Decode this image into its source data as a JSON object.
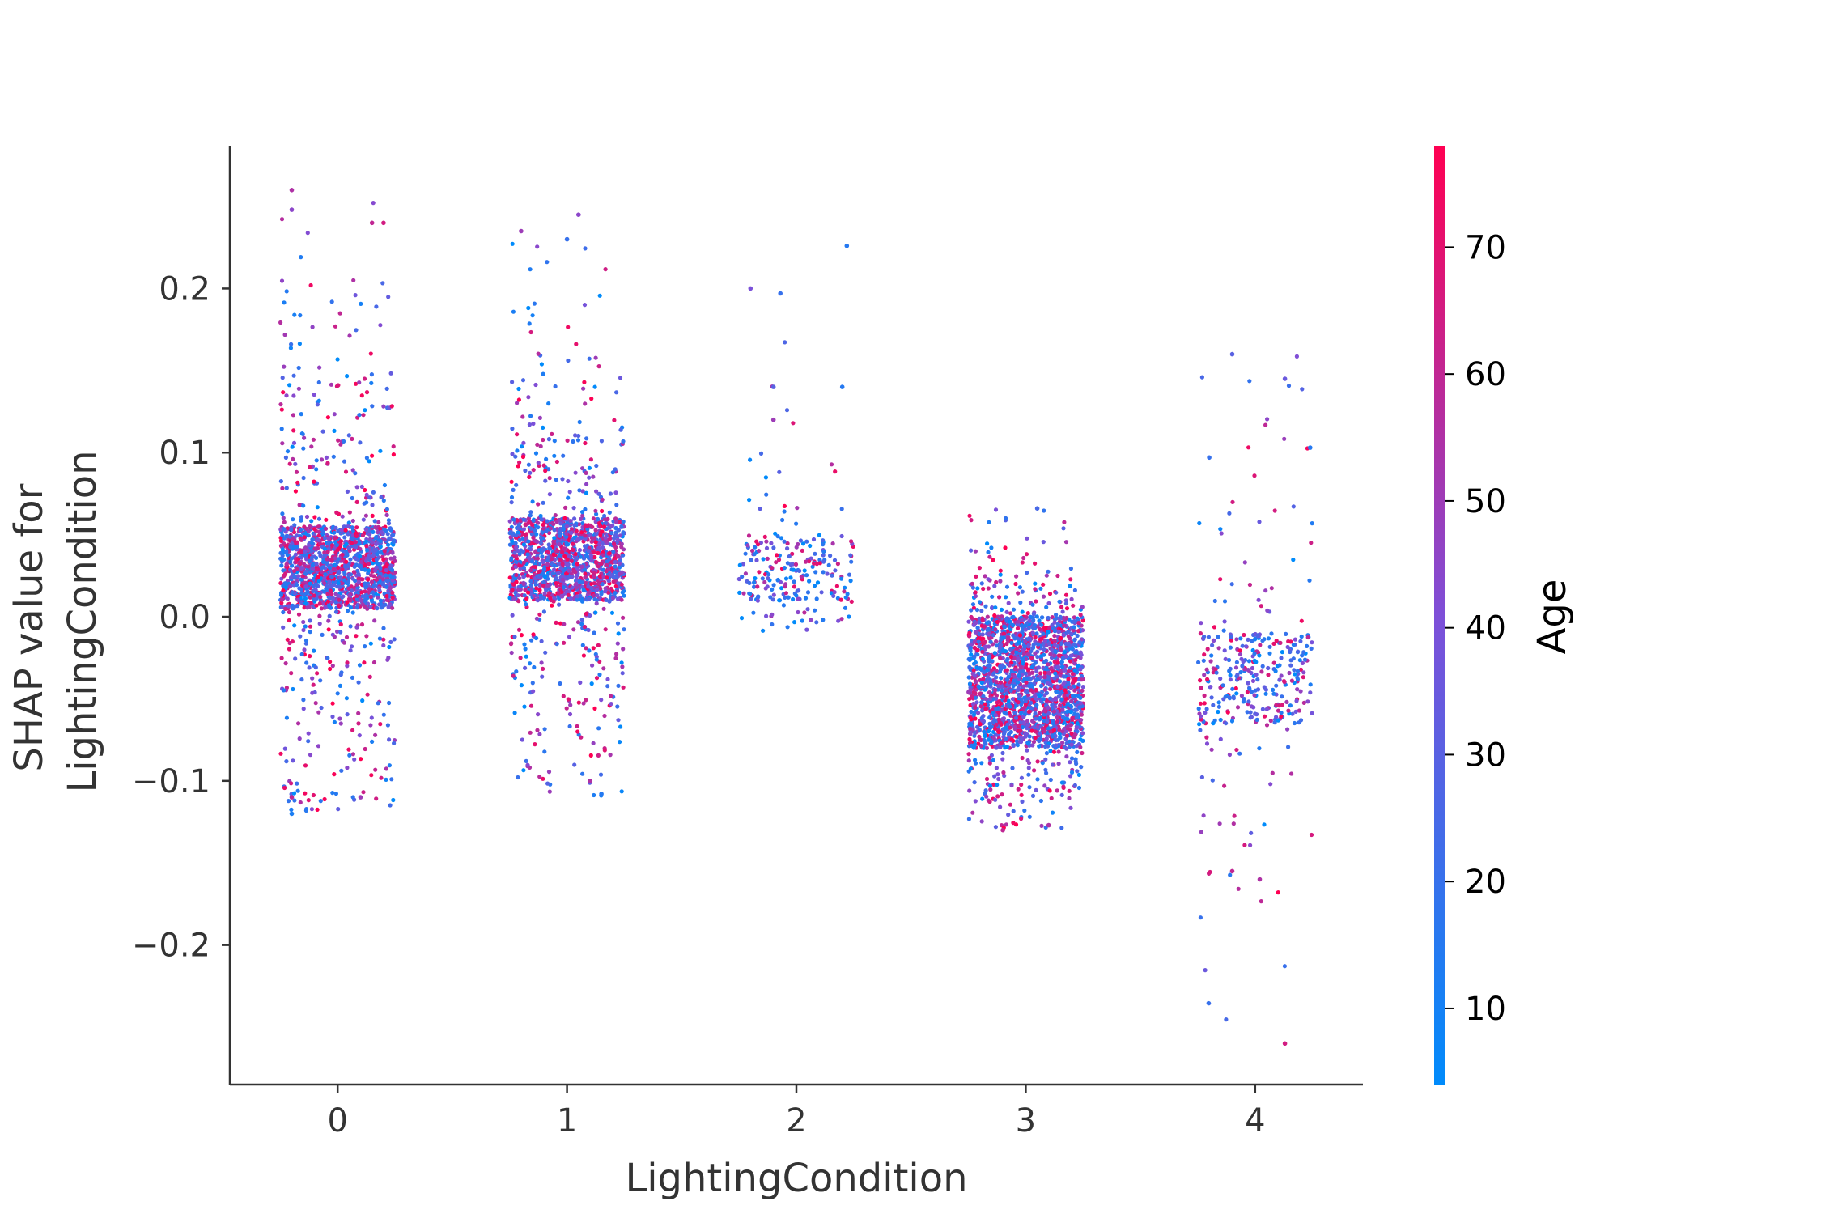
{
  "chart_data": {
    "type": "scatter",
    "title": "",
    "xlabel": "LightingCondition",
    "ylabel_lines": [
      "SHAP value for",
      "LightingCondition"
    ],
    "x_ticks": [
      "0",
      "1",
      "2",
      "3",
      "4"
    ],
    "y_ticks": [
      "−0.2",
      "−0.1",
      "0.0",
      "0.1",
      "0.2"
    ],
    "y_tick_values": [
      -0.2,
      -0.1,
      0.0,
      0.1,
      0.2
    ],
    "xlim": [
      -0.47,
      4.47
    ],
    "ylim": [
      -0.285,
      0.287
    ],
    "jitter_halfwidth": 0.25,
    "grid": false,
    "legend": "none",
    "colorbar": {
      "label": "Age",
      "range": [
        4,
        78
      ],
      "ticks": [
        "10",
        "20",
        "30",
        "40",
        "50",
        "60",
        "70"
      ],
      "tick_values": [
        10,
        20,
        30,
        40,
        50,
        60,
        70
      ],
      "color_low": "#008bfb",
      "color_mid": "#7e4fd8",
      "color_high": "#ff0052"
    },
    "groups": [
      {
        "x": 0,
        "count": 1700,
        "core": [
          0.005,
          0.055
        ],
        "spread": [
          -0.12,
          0.26
        ],
        "age_mean": 40,
        "notable": [
          [
            -0.2,
            0.26,
            55
          ],
          [
            -0.2,
            0.248,
            45
          ],
          [
            0.15,
            0.24,
            60
          ],
          [
            0.2,
            0.24,
            65
          ],
          [
            -0.2,
            -0.11,
            60
          ],
          [
            -0.2,
            -0.12,
            12
          ],
          [
            0.1,
            -0.11,
            50
          ]
        ]
      },
      {
        "x": 1,
        "count": 1500,
        "core": [
          0.01,
          0.06
        ],
        "spread": [
          -0.11,
          0.245
        ],
        "age_mean": 42,
        "notable": [
          [
            0.05,
            0.245,
            45
          ],
          [
            -0.2,
            0.235,
            50
          ],
          [
            0.0,
            0.23,
            20
          ],
          [
            0.15,
            -0.108,
            15
          ],
          [
            0.1,
            -0.1,
            55
          ]
        ]
      },
      {
        "x": 2,
        "count": 230,
        "core": [
          0.01,
          0.05
        ],
        "spread": [
          -0.01,
          0.226
        ],
        "age_mean": 25,
        "notable": [
          [
            0.22,
            0.226,
            15
          ],
          [
            -0.2,
            0.2,
            40
          ],
          [
            -0.07,
            0.197,
            20
          ],
          [
            0.2,
            0.14,
            15
          ],
          [
            -0.1,
            0.14,
            30
          ],
          [
            -0.1,
            0.12,
            50
          ]
        ]
      },
      {
        "x": 3,
        "count": 2400,
        "core": [
          -0.08,
          0.0
        ],
        "spread": [
          -0.13,
          0.066
        ],
        "age_mean": 38,
        "notable": [
          [
            0.05,
            0.066,
            25
          ],
          [
            -0.1,
            -0.13,
            60
          ],
          [
            0.1,
            -0.127,
            55
          ]
        ]
      },
      {
        "x": 4,
        "count": 360,
        "core": [
          -0.065,
          -0.01
        ],
        "spread": [
          -0.265,
          0.16
        ],
        "age_mean": 33,
        "notable": [
          [
            -0.1,
            0.16,
            30
          ],
          [
            0.13,
            0.145,
            35
          ],
          [
            0.24,
            0.103,
            15
          ],
          [
            -0.2,
            0.097,
            20
          ],
          [
            0.13,
            -0.26,
            65
          ],
          [
            0.02,
            -0.16,
            55
          ],
          [
            -0.1,
            -0.155,
            60
          ]
        ]
      }
    ]
  }
}
